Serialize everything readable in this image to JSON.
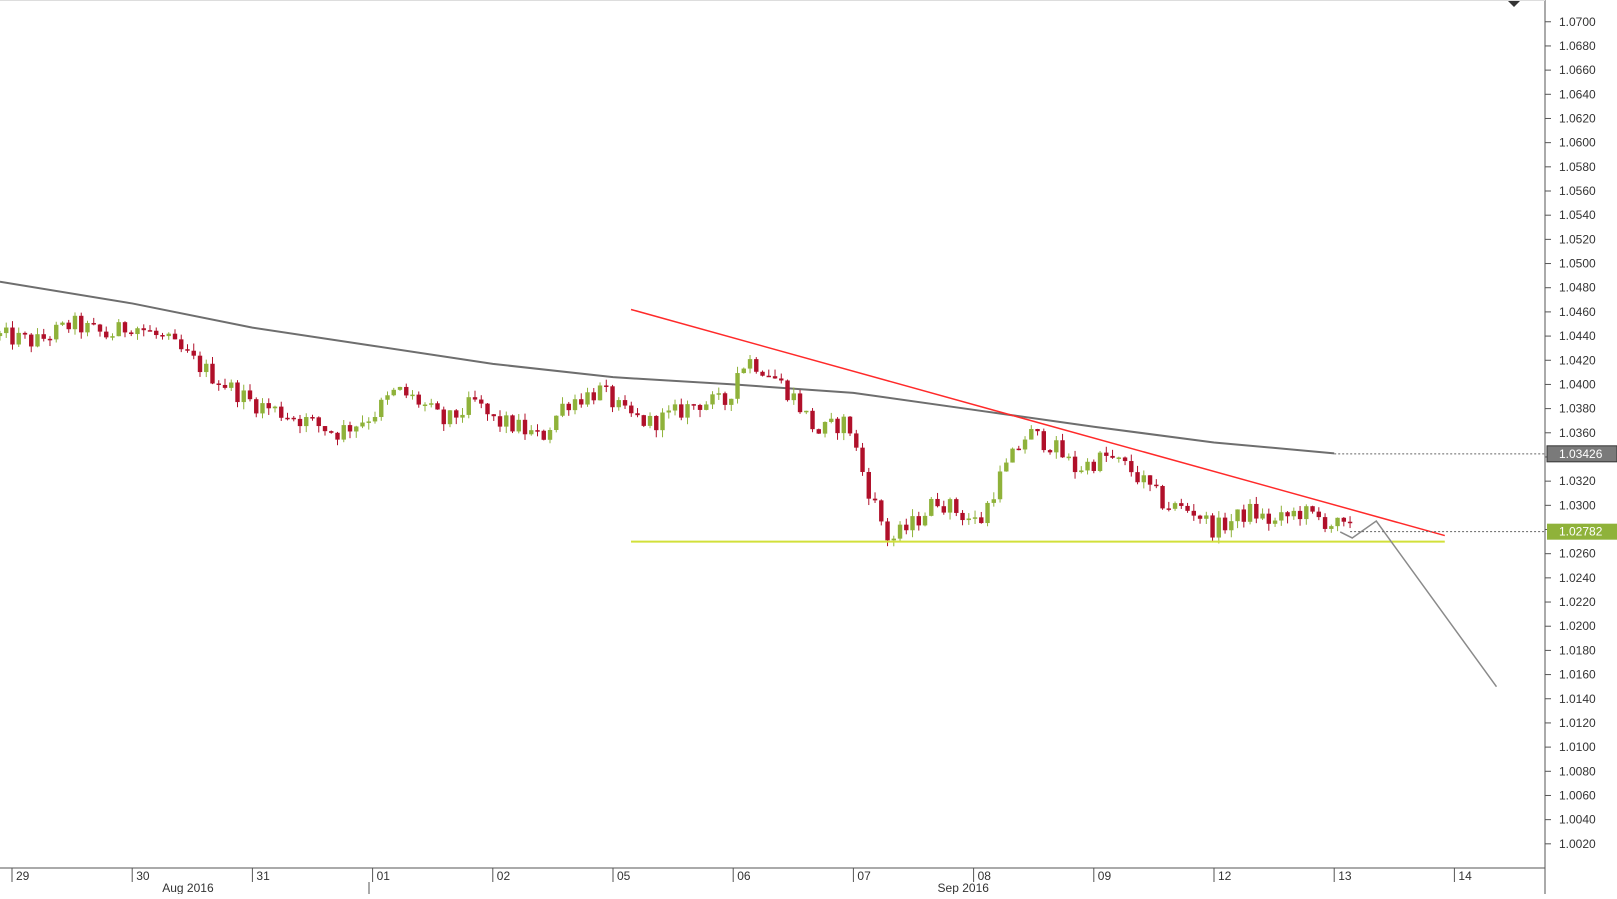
{
  "chart_data": {
    "type": "candlestick",
    "instrument": "",
    "title": "",
    "y_axis": {
      "position": "right",
      "min": 1.0,
      "max": 1.0718,
      "ticks": [
        "1.0700",
        "1.0680",
        "1.0660",
        "1.0640",
        "1.0620",
        "1.0600",
        "1.0580",
        "1.0560",
        "1.0540",
        "1.0520",
        "1.0500",
        "1.0480",
        "1.0460",
        "1.0440",
        "1.0420",
        "1.0400",
        "1.0380",
        "1.0360",
        "1.0340",
        "1.0320",
        "1.0300",
        "1.0280",
        "1.0260",
        "1.0240",
        "1.0220",
        "1.0200",
        "1.0180",
        "1.0160",
        "1.0140",
        "1.0120",
        "1.0100",
        "1.0080",
        "1.0060",
        "1.0040",
        "1.0020"
      ]
    },
    "x_axis": {
      "day_labels": [
        "29",
        "30",
        "31",
        "01",
        "02",
        "05",
        "06",
        "07",
        "08",
        "09",
        "12",
        "13",
        "14"
      ],
      "month_labels": [
        "Aug 2016",
        "Sep 2016"
      ],
      "x_range": [
        -0.1,
        12.7
      ],
      "day_positions": [
        0,
        1,
        2,
        3,
        4,
        5,
        6,
        7,
        8,
        9,
        10,
        11,
        12
      ]
    },
    "price_labels": {
      "moving_average": "1.03426",
      "current_price": "1.02782"
    },
    "colors": {
      "up_candle": "#8fb23a",
      "down_candle": "#b0102a",
      "moving_average": "#6e6e6e",
      "trendline": "#ff2a2a",
      "support": "#d2e03a",
      "projection": "#8a8a8a",
      "ma_label_bg": "#7a7a7a",
      "price_label_bg": "#8fb23a",
      "axis_text": "#333333",
      "grid_line": "#c8c8c8"
    },
    "moving_average": [
      [
        -0.1,
        1.0485
      ],
      [
        1,
        1.0467
      ],
      [
        2,
        1.0447
      ],
      [
        3,
        1.0432
      ],
      [
        4,
        1.0417
      ],
      [
        5,
        1.0406
      ],
      [
        6,
        1.04
      ],
      [
        7,
        1.0393
      ],
      [
        8,
        1.0379
      ],
      [
        9,
        1.0365
      ],
      [
        10,
        1.0352
      ],
      [
        11,
        1.0343
      ]
    ],
    "trendline": [
      [
        5.15,
        1.0462
      ],
      [
        11.92,
        1.0275
      ]
    ],
    "support_line": [
      [
        5.15,
        1.027
      ],
      [
        11.92,
        1.027
      ]
    ],
    "projection": [
      [
        11.05,
        1.0278
      ],
      [
        11.15,
        1.0273
      ],
      [
        11.35,
        1.0287
      ],
      [
        12.35,
        1.015
      ]
    ],
    "last_price_level": 1.02782,
    "ma_level": 1.03426,
    "candle_anchors": [
      [
        -0.1,
        1.044
      ],
      [
        0.2,
        1.0435
      ],
      [
        0.5,
        1.045
      ],
      [
        0.8,
        1.044
      ],
      [
        1.0,
        1.045
      ],
      [
        1.3,
        1.0435
      ],
      [
        1.5,
        1.042
      ],
      [
        1.7,
        1.0405
      ],
      [
        2.0,
        1.0385
      ],
      [
        2.3,
        1.0375
      ],
      [
        2.5,
        1.0368
      ],
      [
        2.7,
        1.036
      ],
      [
        3.0,
        1.0375
      ],
      [
        3.2,
        1.0395
      ],
      [
        3.4,
        1.0385
      ],
      [
        3.6,
        1.0368
      ],
      [
        3.85,
        1.0385
      ],
      [
        4.0,
        1.037
      ],
      [
        4.2,
        1.0365
      ],
      [
        4.4,
        1.0355
      ],
      [
        4.6,
        1.0385
      ],
      [
        4.9,
        1.0395
      ],
      [
        5.1,
        1.0375
      ],
      [
        5.3,
        1.0368
      ],
      [
        5.5,
        1.0375
      ],
      [
        5.7,
        1.0385
      ],
      [
        5.95,
        1.0385
      ],
      [
        6.05,
        1.0415
      ],
      [
        6.15,
        1.042
      ],
      [
        6.3,
        1.041
      ],
      [
        6.5,
        1.039
      ],
      [
        6.7,
        1.036
      ],
      [
        6.95,
        1.037
      ],
      [
        7.1,
        1.032
      ],
      [
        7.3,
        1.027
      ],
      [
        7.5,
        1.0285
      ],
      [
        7.7,
        1.0305
      ],
      [
        7.95,
        1.029
      ],
      [
        8.05,
        1.0285
      ],
      [
        8.2,
        1.032
      ],
      [
        8.45,
        1.036
      ],
      [
        8.65,
        1.035
      ],
      [
        8.85,
        1.033
      ],
      [
        9.1,
        1.034
      ],
      [
        9.3,
        1.033
      ],
      [
        9.6,
        1.03
      ],
      [
        9.85,
        1.0295
      ],
      [
        10.0,
        1.028
      ],
      [
        10.3,
        1.0295
      ],
      [
        10.5,
        1.0285
      ],
      [
        10.7,
        1.0295
      ],
      [
        10.9,
        1.0288
      ],
      [
        11.05,
        1.0282
      ],
      [
        11.15,
        1.02782
      ]
    ]
  }
}
